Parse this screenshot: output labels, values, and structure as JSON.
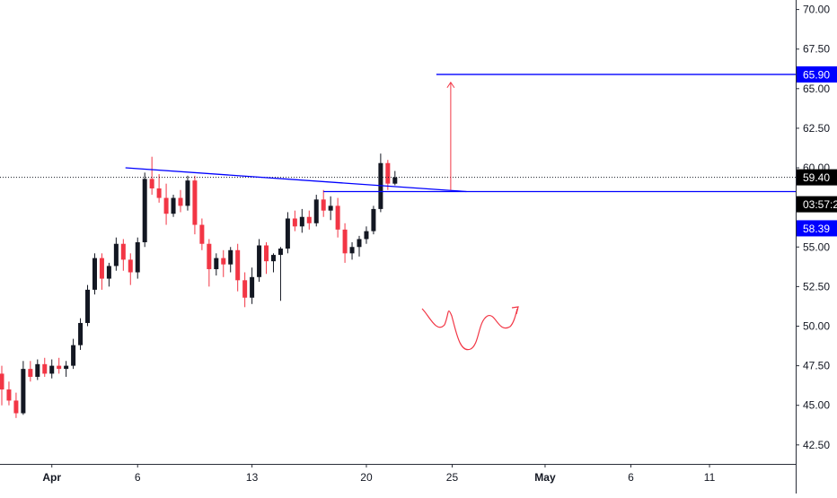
{
  "chart_data": {
    "type": "candlestick",
    "price_axis": {
      "ticks": [
        "70.00",
        "67.50",
        "65.00",
        "62.50",
        "60.00",
        "57.50",
        "55.00",
        "52.50",
        "50.00",
        "47.50",
        "45.00",
        "42.50"
      ],
      "tick_values": [
        70.0,
        67.5,
        65.0,
        62.5,
        60.0,
        57.5,
        55.0,
        52.5,
        50.0,
        47.5,
        45.0,
        42.5
      ],
      "range": [
        41.3,
        70.6
      ]
    },
    "time_axis": {
      "labels": [
        {
          "text": "Apr",
          "bold": true,
          "bar": 7
        },
        {
          "text": "6",
          "bold": false,
          "bar": 19
        },
        {
          "text": "13",
          "bold": false,
          "bar": 35
        },
        {
          "text": "20",
          "bold": false,
          "bar": 51
        },
        {
          "text": "25",
          "bold": false,
          "bar": 63
        },
        {
          "text": "May",
          "bold": true,
          "bar": 76
        },
        {
          "text": "6",
          "bold": false,
          "bar": 88
        },
        {
          "text": "11",
          "bold": false,
          "bar": 99
        }
      ]
    },
    "price_labels": {
      "target": "65.90",
      "last": "59.40",
      "countdown": "03:57:2",
      "breakout": "58.39"
    },
    "levels": {
      "target": 65.9,
      "last": 59.4,
      "breakout": 58.39
    },
    "annotations": {
      "trendline": {
        "from": [
          17.3,
          60.0
        ],
        "to": [
          65,
          58.5
        ]
      },
      "horizontal": {
        "from_bar": 45,
        "value": 58.5
      },
      "arrow": {
        "bar": 62.8,
        "from": 58.6,
        "to": 65.4
      },
      "squiggle": true
    },
    "colors": {
      "up": "#131722",
      "down": "#f23645",
      "levels": "#0000ff",
      "annotation": "#f23645",
      "badge_last": "#000000"
    },
    "ohlc_bars": [
      [
        47,
        47.5,
        45,
        46
      ],
      [
        46,
        46.5,
        45,
        45.3
      ],
      [
        45.3,
        45.8,
        44.2,
        44.5
      ],
      [
        44.5,
        47.8,
        44.4,
        47.3
      ],
      [
        47.3,
        47.8,
        46.5,
        46.8
      ],
      [
        46.8,
        47.9,
        46.6,
        47.6
      ],
      [
        47.6,
        48.0,
        46.8,
        47.0
      ],
      [
        47.0,
        47.9,
        46.7,
        47.5
      ],
      [
        47.5,
        48.0,
        47.0,
        47.3
      ],
      [
        47.3,
        47.8,
        46.8,
        47.5
      ],
      [
        47.5,
        49.2,
        47.3,
        48.8
      ],
      [
        48.8,
        50.5,
        48.5,
        50.2
      ],
      [
        50.2,
        52.6,
        50.0,
        52.3
      ],
      [
        52.3,
        54.6,
        52.0,
        54.3
      ],
      [
        54.3,
        54.6,
        52.3,
        53.0
      ],
      [
        53.0,
        54.0,
        52.5,
        53.8
      ],
      [
        53.8,
        55.6,
        53.5,
        55.2
      ],
      [
        55.2,
        55.5,
        53.5,
        54.2
      ],
      [
        54.2,
        54.6,
        52.6,
        53.4
      ],
      [
        53.4,
        55.6,
        53.0,
        55.3
      ],
      [
        55.3,
        59.7,
        55.0,
        59.3
      ],
      [
        59.3,
        60.7,
        58.3,
        58.7
      ],
      [
        58.7,
        59.6,
        57.8,
        58.1
      ],
      [
        58.1,
        59.0,
        56.4,
        57.1
      ],
      [
        57.1,
        58.3,
        56.9,
        58.1
      ],
      [
        58.1,
        58.6,
        57.2,
        57.6
      ],
      [
        57.6,
        59.5,
        57.3,
        59.2
      ],
      [
        59.2,
        59.5,
        55.8,
        56.4
      ],
      [
        56.4,
        56.8,
        54.8,
        55.2
      ],
      [
        55.2,
        55.5,
        52.5,
        53.6
      ],
      [
        53.6,
        54.6,
        53.2,
        54.3
      ],
      [
        54.3,
        54.8,
        53.1,
        53.9
      ],
      [
        53.9,
        55.0,
        53.4,
        54.8
      ],
      [
        54.8,
        55.2,
        52.2,
        52.9
      ],
      [
        52.9,
        53.4,
        51.2,
        51.8
      ],
      [
        51.8,
        53.7,
        51.4,
        53.1
      ],
      [
        53.1,
        55.5,
        52.8,
        55.1
      ],
      [
        55.1,
        55.3,
        53.3,
        54.1
      ],
      [
        54.1,
        54.6,
        53.4,
        54.5
      ],
      [
        54.5,
        55.0,
        51.6,
        54.9
      ],
      [
        54.9,
        57.2,
        54.6,
        56.8
      ],
      [
        56.8,
        57.3,
        56.0,
        56.3
      ],
      [
        56.3,
        57.4,
        55.9,
        56.9
      ],
      [
        56.9,
        57.3,
        56.1,
        56.5
      ],
      [
        56.5,
        58.3,
        56.3,
        58.0
      ],
      [
        58.0,
        58.6,
        56.9,
        57.3
      ],
      [
        57.3,
        58.2,
        56.7,
        57.6
      ],
      [
        57.6,
        58.1,
        55.6,
        56.1
      ],
      [
        56.1,
        56.5,
        54.0,
        54.6
      ],
      [
        54.6,
        55.3,
        54.2,
        55.0
      ],
      [
        55.0,
        55.7,
        54.4,
        55.5
      ],
      [
        55.5,
        56.3,
        55.2,
        56.0
      ],
      [
        56.0,
        57.6,
        55.8,
        57.4
      ],
      [
        57.4,
        60.9,
        57.2,
        60.3
      ],
      [
        60.3,
        60.5,
        58.6,
        59.0
      ],
      [
        59.0,
        59.8,
        58.9,
        59.4
      ]
    ]
  }
}
